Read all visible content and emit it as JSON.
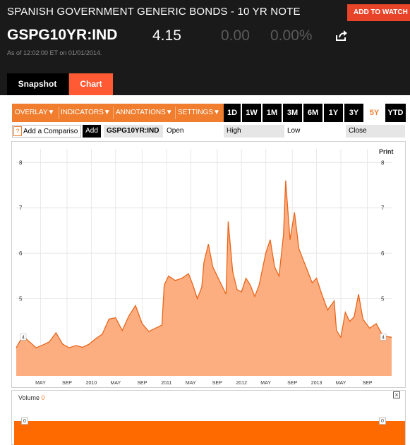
{
  "header": {
    "title": "SPANISH GOVERNMENT GENERIC BONDS - 10 YR NOTE",
    "watch_button": "ADD TO WATCH",
    "ticker": "GSPG10YR:IND",
    "price": "4.15",
    "change": "0.00",
    "change_pct": "0.00%",
    "as_of": "As of 12:02:00 ET on 01/01/2014."
  },
  "tabs": [
    {
      "label": "Snapshot",
      "active": false
    },
    {
      "label": "Chart",
      "active": true
    }
  ],
  "toolbar": {
    "menus": [
      "OVERLAY▼",
      "INDICATORS▼",
      "ANNOTATIONS▼",
      "SETTINGS▼"
    ],
    "ranges": [
      "1D",
      "1W",
      "1M",
      "3M",
      "6M",
      "1Y",
      "3Y",
      "5Y",
      "YTD"
    ],
    "active_range": "5Y"
  },
  "compare": {
    "help": "?",
    "placeholder": "Add a Compariso",
    "add_label": "Add",
    "symbol": "GSPG10YR:IND",
    "open_label": "Open",
    "high_label": "High",
    "low_label": "Low",
    "close_label": "Close"
  },
  "print_label": "Print",
  "volume": {
    "label": "Volume",
    "value": "0",
    "close_icon": "close-icon",
    "tick": "0"
  },
  "colors": {
    "accent": "#f07e2e",
    "line": "#e8661c",
    "fill": "#fdae80",
    "volume": "#ff6a00",
    "header_bg": "#1a1a1a"
  },
  "chart_data": {
    "type": "area",
    "ylim": [
      3.3,
      8.3
    ],
    "y_ticks": [
      8,
      7,
      6,
      5
    ],
    "marker_label": "4",
    "x_ticks": [
      "MAY",
      "SEP",
      "2010",
      "MAY",
      "SEP",
      "2011",
      "MAY",
      "SEP",
      "2012",
      "MAY",
      "SEP",
      "2013",
      "MAY",
      "SEP"
    ],
    "x_tick_t": [
      0.11,
      0.23,
      0.34,
      0.45,
      0.57,
      0.68,
      0.79,
      0.91,
      1.02,
      1.13,
      1.25,
      1.36,
      1.47,
      1.59
    ],
    "t_range": [
      0.0,
      1.7
    ],
    "series": [
      {
        "x": [
          0.0,
          0.03,
          0.06,
          0.09,
          0.12,
          0.15,
          0.18,
          0.21,
          0.24,
          0.27,
          0.3,
          0.33,
          0.36,
          0.39,
          0.42,
          0.45,
          0.48,
          0.51,
          0.54,
          0.57,
          0.6,
          0.63,
          0.66,
          0.67,
          0.69,
          0.72,
          0.75,
          0.78,
          0.8,
          0.82,
          0.84,
          0.85,
          0.87,
          0.89,
          0.92,
          0.95,
          0.96,
          0.98,
          1.0,
          1.02,
          1.04,
          1.06,
          1.08,
          1.1,
          1.13,
          1.15,
          1.17,
          1.19,
          1.21,
          1.22,
          1.24,
          1.26,
          1.28,
          1.3,
          1.32,
          1.34,
          1.36,
          1.38,
          1.41,
          1.44,
          1.45,
          1.47,
          1.49,
          1.51,
          1.53,
          1.55,
          1.57,
          1.6,
          1.63,
          1.66,
          1.7
        ],
        "values": [
          3.92,
          4.18,
          4.05,
          3.92,
          3.98,
          4.05,
          4.25,
          4.0,
          3.92,
          3.97,
          3.93,
          4.0,
          4.12,
          4.22,
          4.55,
          4.58,
          4.3,
          4.62,
          4.85,
          4.45,
          4.28,
          4.35,
          4.42,
          5.3,
          5.5,
          5.4,
          5.45,
          5.55,
          5.3,
          5.0,
          5.25,
          5.8,
          6.2,
          5.7,
          5.4,
          5.1,
          6.7,
          5.6,
          5.2,
          5.15,
          5.45,
          5.3,
          5.05,
          5.3,
          6.0,
          6.3,
          5.7,
          5.5,
          6.4,
          7.6,
          6.3,
          6.9,
          6.1,
          5.85,
          5.6,
          5.35,
          5.45,
          5.15,
          4.75,
          4.95,
          4.3,
          4.15,
          4.7,
          4.5,
          4.6,
          5.1,
          4.55,
          4.35,
          4.45,
          4.18,
          4.15
        ]
      }
    ]
  }
}
